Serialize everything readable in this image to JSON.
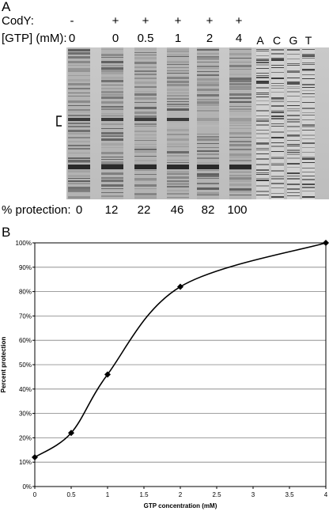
{
  "panel_a": {
    "letter": "A",
    "cody_label": "CodY:",
    "gtp_label": "[GTP] (mM):",
    "protection_label": "% protection:",
    "lanes": [
      {
        "cody": "-",
        "gtp": "0",
        "protection": "0"
      },
      {
        "cody": "+",
        "gtp": "0",
        "protection": "12"
      },
      {
        "cody": "+",
        "gtp": "0.5",
        "protection": "22"
      },
      {
        "cody": "+",
        "gtp": "1",
        "protection": "46"
      },
      {
        "cody": "+",
        "gtp": "2",
        "protection": "82"
      },
      {
        "cody": "+",
        "gtp": "4",
        "protection": "100"
      }
    ],
    "sequence_lanes": [
      "A",
      "C",
      "G",
      "T"
    ]
  },
  "panel_b": {
    "letter": "B"
  },
  "chart_data": {
    "type": "line",
    "x": [
      0,
      0.5,
      1,
      2,
      4
    ],
    "series": [
      {
        "values": [
          12,
          22,
          46,
          82,
          100
        ]
      }
    ],
    "xlabel": "GTP concentration (mM)",
    "ylabel": "Percent protection",
    "xlim": [
      0,
      4
    ],
    "ylim": [
      0,
      100
    ],
    "x_ticks": [
      "0",
      "0.5",
      "1",
      "1.5",
      "2",
      "2.5",
      "3",
      "3.5",
      "4"
    ],
    "y_ticks": [
      "0%",
      "10%",
      "20%",
      "30%",
      "40%",
      "50%",
      "60%",
      "70%",
      "80%",
      "90%",
      "100%"
    ],
    "grid": true,
    "marker": "diamond",
    "line_color": "#000000"
  }
}
